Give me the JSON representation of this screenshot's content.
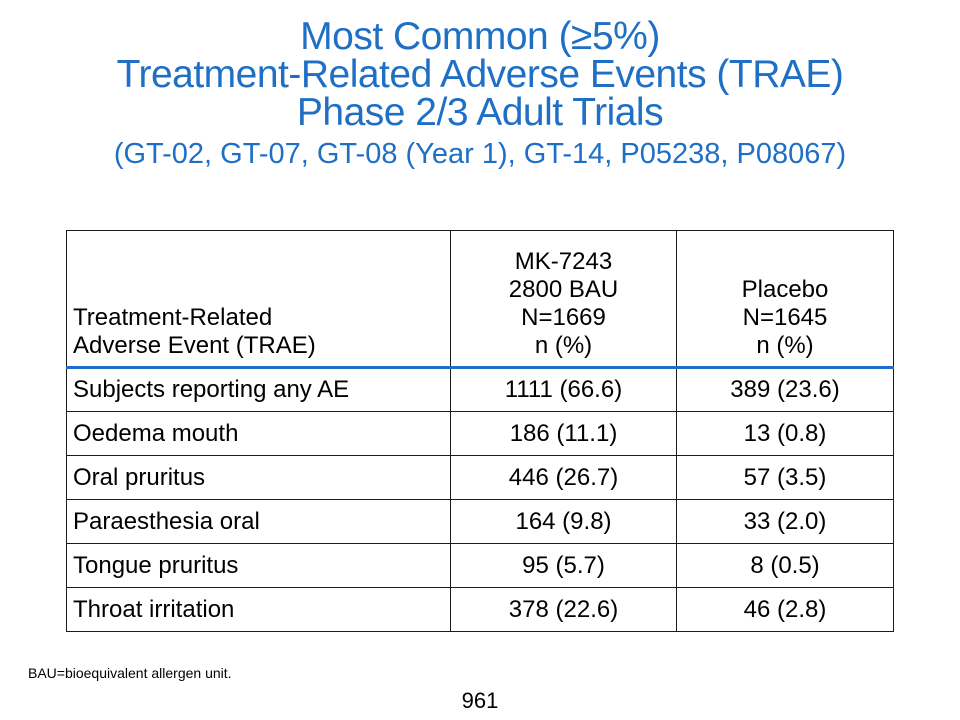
{
  "title": {
    "line1": "Most Common (≥5%)",
    "line2": "Treatment-Related Adverse Events (TRAE)",
    "line3": "Phase 2/3 Adult Trials",
    "line4": "(GT-02, GT-07, GT-08 (Year 1), GT-14, P05238, P08067)"
  },
  "table": {
    "headers": [
      [
        "Treatment-Related",
        "Adverse Event (TRAE)"
      ],
      [
        "MK-7243",
        "2800 BAU",
        "N=1669",
        "n (%)"
      ],
      [
        "Placebo",
        "N=1645",
        "n (%)"
      ]
    ],
    "rows": [
      [
        "Subjects reporting any AE",
        "1111 (66.6)",
        "389 (23.6)"
      ],
      [
        "Oedema mouth",
        "186 (11.1)",
        "13 (0.8)"
      ],
      [
        "Oral pruritus",
        "446 (26.7)",
        "57 (3.5)"
      ],
      [
        "Paraesthesia oral",
        "164 (9.8)",
        "33 (2.0)"
      ],
      [
        "Tongue pruritus",
        "95 (5.7)",
        "8 (0.5)"
      ],
      [
        "Throat irritation",
        "378 (22.6)",
        "46 (2.8)"
      ]
    ]
  },
  "footnote": "BAU=bioequivalent allergen unit.",
  "page_number": "961",
  "colors": {
    "title": "#1f6fc5",
    "header_rule": "#1f6fc5",
    "text": "#000000"
  }
}
